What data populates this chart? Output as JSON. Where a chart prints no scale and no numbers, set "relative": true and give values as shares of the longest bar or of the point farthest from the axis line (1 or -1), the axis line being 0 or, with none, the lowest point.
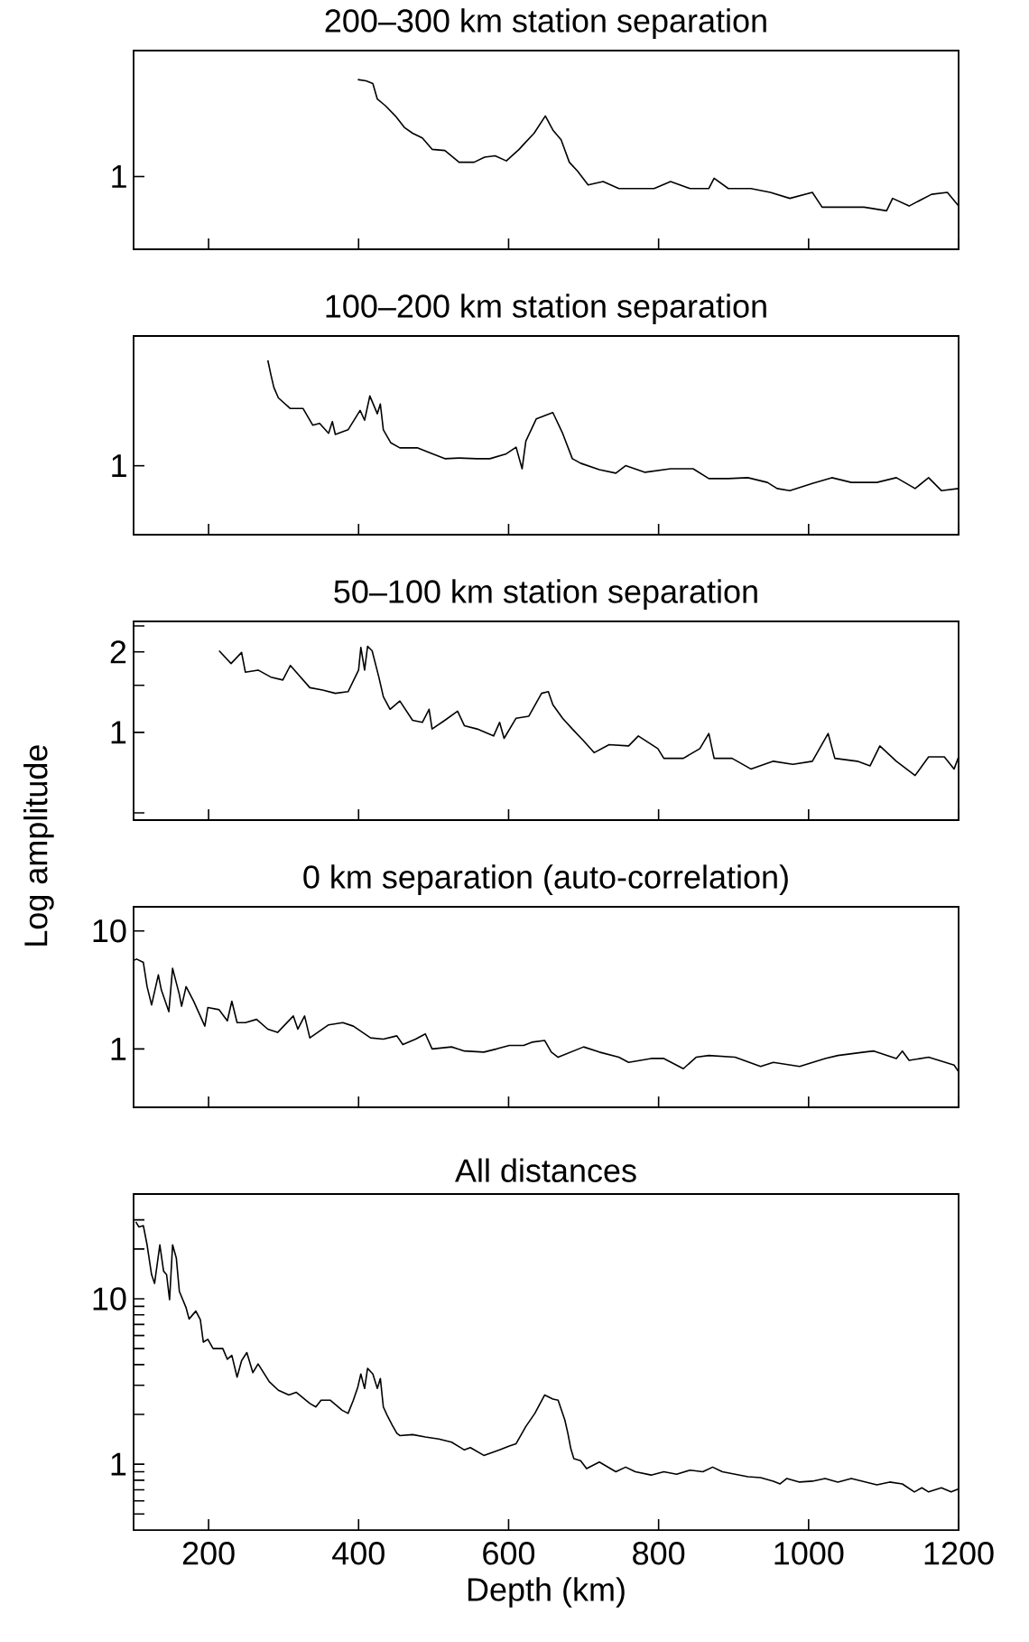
{
  "chart_data": [
    {
      "type": "line",
      "title": "200–300 km station separation",
      "color": "#000000",
      "relative": true,
      "tick_labels": "y",
      "xlim": [
        100,
        1200
      ],
      "annotations": [
        "1"
      ],
      "xticks": [
        {
          "value": 200,
          "label": null
        },
        {
          "value": 400,
          "label": null
        },
        {
          "value": 600,
          "label": null
        },
        {
          "value": 800,
          "label": null
        },
        {
          "value": 1000,
          "label": null
        },
        {
          "value": 1200,
          "label": null
        }
      ],
      "x": [
        399,
        410,
        419,
        425,
        436,
        449,
        461,
        472,
        485,
        498,
        515,
        534,
        554,
        568,
        582,
        597,
        614,
        620,
        634,
        649,
        659,
        670,
        681,
        692,
        706,
        726,
        747,
        773,
        794,
        816,
        842,
        867,
        874,
        893,
        923,
        949,
        975,
        1005,
        1018,
        1039,
        1074,
        1104,
        1112,
        1134,
        1164,
        1185,
        1200
      ],
      "values": [
        1.0,
        0.993,
        0.977,
        0.885,
        0.845,
        0.786,
        0.718,
        0.684,
        0.656,
        0.589,
        0.582,
        0.513,
        0.513,
        0.543,
        0.551,
        0.521,
        0.589,
        0.618,
        0.684,
        0.786,
        0.703,
        0.645,
        0.513,
        0.46,
        0.379,
        0.399,
        0.358,
        0.358,
        0.358,
        0.399,
        0.358,
        0.358,
        0.419,
        0.358,
        0.358,
        0.335,
        0.3,
        0.335,
        0.248,
        0.248,
        0.248,
        0.227,
        0.3,
        0.255,
        0.324,
        0.335,
        0.255
      ]
    },
    {
      "type": "line",
      "title": "100–200 km station separation",
      "color": "#000000",
      "relative": true,
      "tick_labels": "y",
      "xlim": [
        100,
        1200
      ],
      "annotations": [
        "1"
      ],
      "xticks": [
        {
          "value": 200,
          "label": null
        },
        {
          "value": 400,
          "label": null
        },
        {
          "value": 600,
          "label": null
        },
        {
          "value": 800,
          "label": null
        },
        {
          "value": 1000,
          "label": null
        },
        {
          "value": 1200,
          "label": null
        }
      ],
      "x": [
        279,
        283,
        287,
        293,
        309,
        326,
        339,
        348,
        360,
        365,
        369,
        386,
        402,
        408,
        415,
        425,
        429,
        433,
        443,
        455,
        479,
        494,
        515,
        534,
        558,
        575,
        597,
        610,
        618,
        623,
        637,
        659,
        672,
        685,
        696,
        721,
        743,
        756,
        782,
        816,
        846,
        867,
        893,
        919,
        945,
        958,
        975,
        1005,
        1031,
        1057,
        1091,
        1117,
        1142,
        1160,
        1177,
        1200
      ],
      "values": [
        1.0,
        0.919,
        0.845,
        0.785,
        0.724,
        0.724,
        0.628,
        0.639,
        0.582,
        0.649,
        0.575,
        0.602,
        0.713,
        0.657,
        0.796,
        0.694,
        0.75,
        0.602,
        0.527,
        0.498,
        0.498,
        0.472,
        0.436,
        0.44,
        0.436,
        0.436,
        0.464,
        0.502,
        0.378,
        0.537,
        0.665,
        0.701,
        0.582,
        0.436,
        0.41,
        0.373,
        0.353,
        0.396,
        0.358,
        0.378,
        0.378,
        0.322,
        0.322,
        0.327,
        0.3,
        0.265,
        0.253,
        0.294,
        0.327,
        0.3,
        0.3,
        0.327,
        0.265,
        0.327,
        0.253,
        0.265
      ]
    },
    {
      "type": "line",
      "title": "50–100 km station separation",
      "ylabel": "Log amplitude",
      "color": "#000000",
      "log": "y",
      "tick_labels": "y",
      "xlim": [
        100,
        1200
      ],
      "ylim": [
        0.47,
        2.6
      ],
      "xticks": [
        {
          "value": 200,
          "label": null
        },
        {
          "value": 400,
          "label": null
        },
        {
          "value": 600,
          "label": null
        },
        {
          "value": 800,
          "label": null
        },
        {
          "value": 1000,
          "label": null
        },
        {
          "value": 1200,
          "label": null
        }
      ],
      "yticks": [
        {
          "value": 0.5,
          "label": null
        },
        1,
        {
          "value": 1.5,
          "label": null
        },
        2,
        {
          "value": 2.5,
          "label": null
        }
      ],
      "x": [
        214,
        230,
        244,
        249,
        266,
        283,
        299,
        309,
        335,
        352,
        369,
        386,
        400,
        403,
        408,
        412,
        418,
        427,
        433,
        442,
        455,
        472,
        485,
        494,
        498,
        515,
        532,
        541,
        558,
        580,
        588,
        594,
        610,
        627,
        644,
        653,
        659,
        672,
        685,
        700,
        714,
        734,
        760,
        773,
        799,
        807,
        833,
        855,
        867,
        874,
        898,
        923,
        953,
        979,
        1005,
        1026,
        1035,
        1065,
        1082,
        1095,
        1117,
        1142,
        1160,
        1181,
        1194,
        1200
      ],
      "values": [
        2.02,
        1.81,
        1.99,
        1.68,
        1.71,
        1.61,
        1.57,
        1.78,
        1.47,
        1.44,
        1.4,
        1.42,
        1.71,
        2.08,
        1.71,
        2.1,
        2.02,
        1.61,
        1.36,
        1.22,
        1.31,
        1.11,
        1.09,
        1.22,
        1.03,
        1.11,
        1.2,
        1.06,
        1.03,
        0.97,
        1.09,
        0.95,
        1.13,
        1.15,
        1.4,
        1.42,
        1.27,
        1.13,
        1.03,
        0.93,
        0.84,
        0.9,
        0.89,
        0.97,
        0.87,
        0.8,
        0.8,
        0.87,
        0.99,
        0.8,
        0.8,
        0.73,
        0.78,
        0.76,
        0.78,
        0.99,
        0.8,
        0.78,
        0.75,
        0.89,
        0.78,
        0.69,
        0.81,
        0.81,
        0.73,
        0.81
      ]
    },
    {
      "type": "line",
      "title": "0 km separation (auto-correlation)",
      "color": "#000000",
      "log": "y",
      "tick_labels": "y",
      "xlim": [
        100,
        1200
      ],
      "ylim": [
        0.32,
        16
      ],
      "xticks": [
        {
          "value": 200,
          "label": null
        },
        {
          "value": 400,
          "label": null
        },
        {
          "value": 600,
          "label": null
        },
        {
          "value": 800,
          "label": null
        },
        {
          "value": 1000,
          "label": null
        },
        {
          "value": 1200,
          "label": null
        }
      ],
      "yticks": [
        1,
        10
      ],
      "x": [
        100,
        104,
        113,
        118,
        124,
        133,
        137,
        147,
        152,
        161,
        164,
        170,
        180,
        195,
        199,
        214,
        225,
        231,
        238,
        249,
        264,
        279,
        292,
        313,
        319,
        328,
        335,
        360,
        379,
        393,
        416,
        433,
        451,
        459,
        476,
        489,
        498,
        524,
        541,
        567,
        584,
        601,
        620,
        631,
        648,
        657,
        666,
        700,
        721,
        747,
        760,
        790,
        807,
        833,
        850,
        867,
        902,
        936,
        953,
        988,
        1022,
        1039,
        1074,
        1087,
        1117,
        1125,
        1134,
        1160,
        1194,
        1200
      ],
      "values": [
        5.62,
        5.77,
        5.41,
        3.37,
        2.36,
        4.24,
        3.16,
        2.07,
        4.82,
        2.89,
        2.3,
        3.37,
        2.54,
        1.56,
        2.24,
        2.15,
        1.73,
        2.54,
        1.67,
        1.67,
        1.78,
        1.47,
        1.38,
        1.9,
        1.47,
        1.9,
        1.24,
        1.6,
        1.67,
        1.56,
        1.24,
        1.21,
        1.29,
        1.09,
        1.21,
        1.34,
        1.0,
        1.04,
        0.96,
        0.94,
        1.0,
        1.07,
        1.07,
        1.14,
        1.18,
        0.94,
        0.85,
        1.04,
        0.94,
        0.85,
        0.77,
        0.83,
        0.83,
        0.68,
        0.85,
        0.88,
        0.85,
        0.71,
        0.77,
        0.71,
        0.83,
        0.88,
        0.94,
        0.96,
        0.83,
        0.96,
        0.8,
        0.85,
        0.73,
        0.64
      ]
    },
    {
      "type": "line",
      "title": "All distances",
      "xlabel": "Depth (km)",
      "color": "#000000",
      "log": "y",
      "xlim": [
        100,
        1200
      ],
      "ylim": [
        0.4,
        43
      ],
      "xticks": [
        200,
        400,
        600,
        800,
        1000,
        1200
      ],
      "yticks": [
        {
          "value": 0.5,
          "label": null
        },
        {
          "value": 0.6,
          "label": null
        },
        {
          "value": 0.7,
          "label": null
        },
        {
          "value": 0.8,
          "label": null
        },
        {
          "value": 0.9,
          "label": null
        },
        1,
        {
          "value": 2,
          "label": null
        },
        {
          "value": 3,
          "label": null
        },
        {
          "value": 4,
          "label": null
        },
        {
          "value": 5,
          "label": null
        },
        {
          "value": 6,
          "label": null
        },
        {
          "value": 7,
          "label": null
        },
        {
          "value": 8,
          "label": null
        },
        {
          "value": 9,
          "label": null
        },
        10,
        {
          "value": 20,
          "label": null
        },
        {
          "value": 30,
          "label": null
        }
      ],
      "x": [
        103,
        107,
        113,
        118,
        124,
        128,
        135,
        140,
        144,
        148,
        152,
        157,
        161,
        170,
        174,
        183,
        189,
        193,
        199,
        206,
        219,
        225,
        231,
        238,
        244,
        251,
        259,
        266,
        281,
        293,
        307,
        317,
        335,
        343,
        350,
        362,
        378,
        386,
        393,
        399,
        403,
        408,
        412,
        419,
        425,
        429,
        433,
        438,
        445,
        451,
        455,
        472,
        489,
        507,
        524,
        541,
        549,
        567,
        588,
        601,
        610,
        623,
        635,
        648,
        659,
        666,
        675,
        679,
        683,
        687,
        696,
        704,
        721,
        743,
        756,
        769,
        790,
        807,
        824,
        842,
        859,
        872,
        885,
        902,
        919,
        936,
        953,
        962,
        971,
        988,
        1005,
        1022,
        1039,
        1057,
        1091,
        1108,
        1125,
        1141,
        1151,
        1160,
        1177,
        1190,
        1200
      ],
      "values": [
        29.2,
        27.2,
        27.7,
        21.2,
        14.0,
        12.4,
        21.2,
        14.7,
        14.0,
        9.87,
        21.2,
        17.6,
        11.1,
        8.83,
        7.55,
        8.43,
        7.48,
        5.47,
        5.69,
        5.0,
        5.0,
        4.31,
        4.55,
        3.36,
        4.23,
        4.73,
        3.58,
        4.04,
        3.15,
        2.8,
        2.62,
        2.72,
        2.33,
        2.22,
        2.44,
        2.44,
        2.12,
        2.03,
        2.44,
        2.93,
        3.51,
        2.87,
        3.8,
        3.51,
        2.87,
        3.3,
        2.22,
        1.98,
        1.72,
        1.54,
        1.49,
        1.51,
        1.46,
        1.42,
        1.36,
        1.22,
        1.26,
        1.13,
        1.22,
        1.29,
        1.33,
        1.69,
        2.03,
        2.62,
        2.48,
        2.44,
        1.85,
        1.54,
        1.24,
        1.08,
        1.05,
        0.94,
        1.03,
        0.9,
        0.96,
        0.9,
        0.86,
        0.9,
        0.87,
        0.92,
        0.9,
        0.96,
        0.9,
        0.87,
        0.84,
        0.83,
        0.79,
        0.76,
        0.82,
        0.78,
        0.79,
        0.82,
        0.78,
        0.82,
        0.75,
        0.78,
        0.76,
        0.68,
        0.72,
        0.68,
        0.72,
        0.68,
        0.71
      ]
    }
  ]
}
